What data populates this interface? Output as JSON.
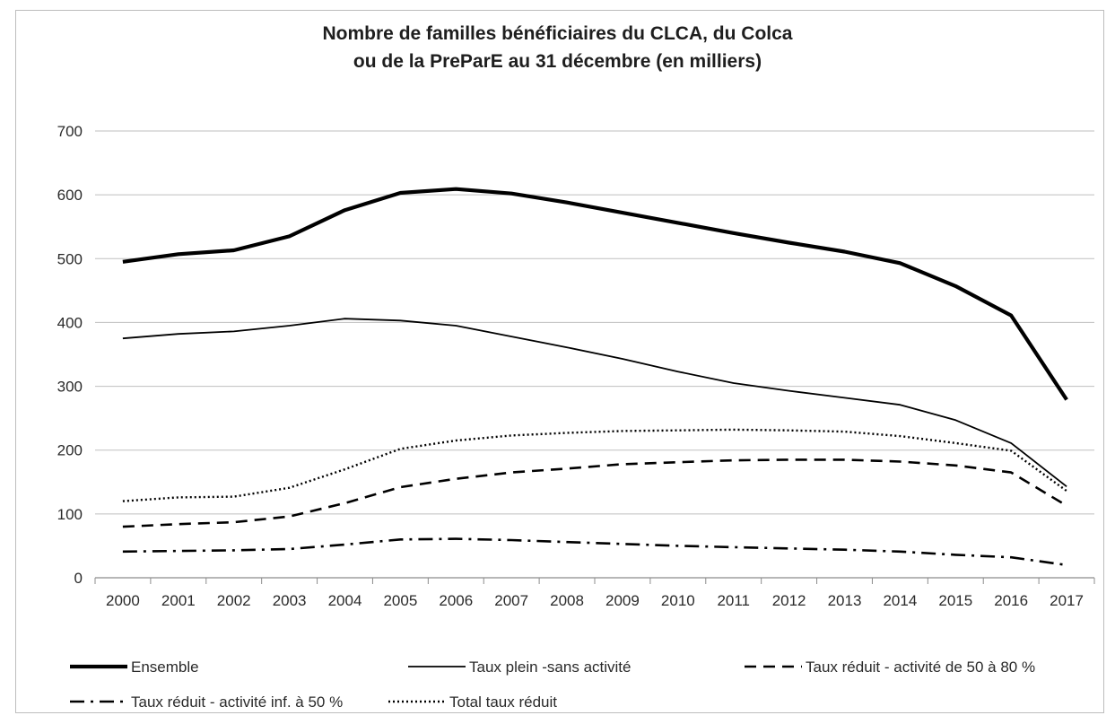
{
  "chart_data": {
    "type": "line",
    "title_line1": "Nombre de familles bénéficiaires du CLCA, du Colca",
    "title_line2": "ou de la PreParE au 31 décembre (en milliers)",
    "xlabel": "",
    "ylabel": "",
    "ylim": [
      0,
      700
    ],
    "yticks": [
      0,
      100,
      200,
      300,
      400,
      500,
      600,
      700
    ],
    "grid": true,
    "legend_position": "bottom",
    "categories": [
      "2000",
      "2001",
      "2002",
      "2003",
      "2004",
      "2005",
      "2006",
      "2007",
      "2008",
      "2009",
      "2010",
      "2011",
      "2012",
      "2013",
      "2014",
      "2015",
      "2016",
      "2017"
    ],
    "series": [
      {
        "name": "Ensemble",
        "style": "thick-solid",
        "values": [
          495,
          507,
          513,
          535,
          576,
          603,
          609,
          602,
          588,
          572,
          556,
          540,
          525,
          511,
          493,
          457,
          411,
          279
        ]
      },
      {
        "name": "Taux plein -sans activité",
        "style": "thin-solid",
        "values": [
          375,
          382,
          386,
          395,
          406,
          403,
          395,
          378,
          361,
          343,
          323,
          305,
          293,
          282,
          271,
          247,
          211,
          143
        ]
      },
      {
        "name": "Taux réduit - activité de 50 à 80 %",
        "style": "dashed",
        "values": [
          80,
          84,
          87,
          96,
          117,
          142,
          155,
          165,
          171,
          178,
          181,
          184,
          185,
          185,
          182,
          176,
          165,
          113
        ]
      },
      {
        "name": "Taux réduit - activité inf. à 50 %",
        "style": "dash-dot",
        "values": [
          41,
          42,
          43,
          45,
          52,
          60,
          61,
          59,
          56,
          53,
          50,
          48,
          46,
          44,
          41,
          36,
          32,
          20
        ]
      },
      {
        "name": "Total taux réduit",
        "style": "dotted",
        "values": [
          120,
          126,
          127,
          141,
          170,
          202,
          215,
          223,
          227,
          230,
          231,
          232,
          231,
          229,
          222,
          211,
          199,
          136
        ]
      }
    ]
  },
  "colors": {
    "line": "#000000",
    "grid": "#bfbfbf",
    "axis": "#8c8c8c"
  }
}
